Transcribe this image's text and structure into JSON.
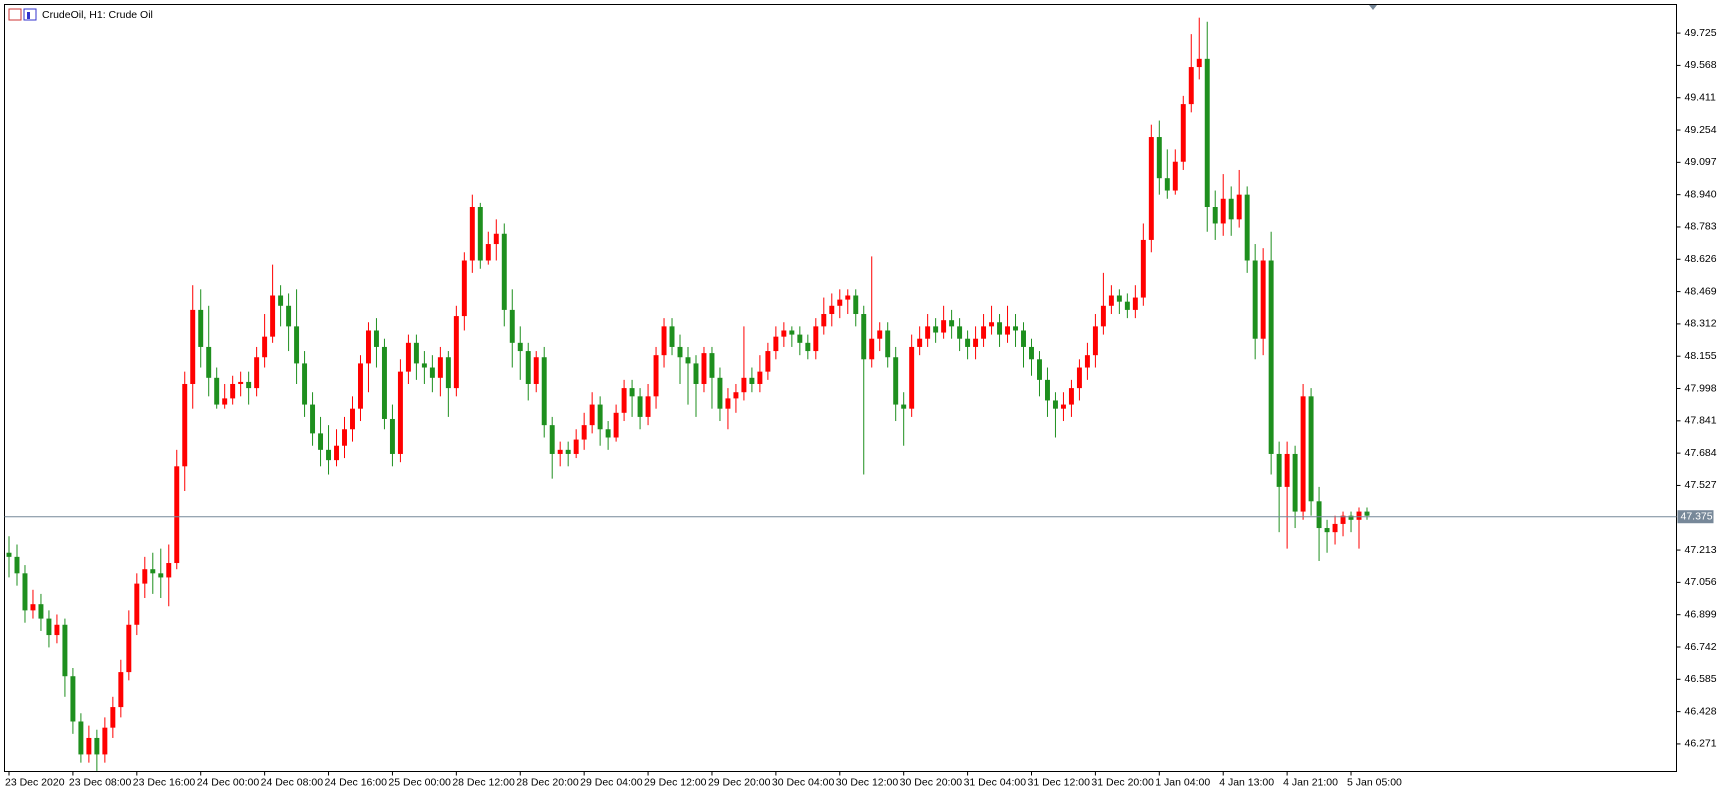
{
  "chart_data": {
    "type": "candlestick",
    "title": "CrudeOil, H1:  Crude Oil",
    "categories": [
      "23 Dec 2020",
      null,
      null,
      null,
      null,
      null,
      null,
      null,
      "23 Dec 08:00",
      null,
      null,
      null,
      null,
      null,
      null,
      null,
      "23 Dec 16:00",
      null,
      null,
      null,
      null,
      null,
      null,
      null,
      "24 Dec 00:00",
      null,
      null,
      null,
      null,
      null,
      null,
      null,
      "24 Dec 08:00",
      null,
      null,
      null,
      null,
      null,
      null,
      null,
      "24 Dec 16:00",
      null,
      null,
      null,
      null,
      null,
      null,
      null,
      "25 Dec 00:00",
      null,
      null,
      null,
      null,
      null,
      null,
      null,
      "28 Dec 12:00",
      null,
      null,
      null,
      null,
      null,
      null,
      null,
      "28 Dec 20:00",
      null,
      null,
      null,
      null,
      null,
      null,
      null,
      "29 Dec 04:00",
      null,
      null,
      null,
      null,
      null,
      null,
      null,
      "29 Dec 12:00",
      null,
      null,
      null,
      null,
      null,
      null,
      null,
      "29 Dec 20:00",
      null,
      null,
      null,
      null,
      null,
      null,
      null,
      "30 Dec 04:00",
      null,
      null,
      null,
      null,
      null,
      null,
      null,
      "30 Dec 12:00",
      null,
      null,
      null,
      null,
      null,
      null,
      null,
      "30 Dec 20:00",
      null,
      null,
      null,
      null,
      null,
      null,
      null,
      "31 Dec 04:00",
      null,
      null,
      null,
      null,
      null,
      null,
      null,
      "31 Dec 12:00",
      null,
      null,
      null,
      null,
      null,
      null,
      null,
      "31 Dec 20:00",
      null,
      null,
      null,
      null,
      null,
      null,
      null,
      "1 Jan 04:00",
      null,
      null,
      null,
      null,
      null,
      null,
      null,
      "4 Jan 13:00",
      null,
      null,
      null,
      null,
      null,
      null,
      null,
      "4 Jan 21:00",
      null,
      null,
      null,
      null,
      null,
      null,
      null,
      "5 Jan 05:00",
      null,
      null
    ],
    "ohlc": [
      [
        47.2,
        47.28,
        47.08,
        47.18
      ],
      [
        47.18,
        47.24,
        47.04,
        47.1
      ],
      [
        47.1,
        47.14,
        46.86,
        46.92
      ],
      [
        46.92,
        47.02,
        46.88,
        46.95
      ],
      [
        46.95,
        47.0,
        46.82,
        46.88
      ],
      [
        46.88,
        46.92,
        46.74,
        46.8
      ],
      [
        46.8,
        46.9,
        46.76,
        46.85
      ],
      [
        46.85,
        46.88,
        46.5,
        46.6
      ],
      [
        46.6,
        46.64,
        46.32,
        46.38
      ],
      [
        46.38,
        46.42,
        46.18,
        46.22
      ],
      [
        46.22,
        46.36,
        46.18,
        46.3
      ],
      [
        46.3,
        46.34,
        46.14,
        46.22
      ],
      [
        46.22,
        46.4,
        46.18,
        46.35
      ],
      [
        46.35,
        46.5,
        46.3,
        46.45
      ],
      [
        46.45,
        46.68,
        46.4,
        46.62
      ],
      [
        46.62,
        46.92,
        46.58,
        46.85
      ],
      [
        46.85,
        47.1,
        46.8,
        47.05
      ],
      [
        47.05,
        47.18,
        46.98,
        47.12
      ],
      [
        47.12,
        47.2,
        47.0,
        47.1
      ],
      [
        47.1,
        47.22,
        46.98,
        47.08
      ],
      [
        47.08,
        47.24,
        46.94,
        47.15
      ],
      [
        47.15,
        47.7,
        47.12,
        47.62
      ],
      [
        47.62,
        48.08,
        47.5,
        48.02
      ],
      [
        48.02,
        48.5,
        47.9,
        48.38
      ],
      [
        48.38,
        48.48,
        48.1,
        48.2
      ],
      [
        48.2,
        48.4,
        47.96,
        48.05
      ],
      [
        48.05,
        48.1,
        47.9,
        47.92
      ],
      [
        47.92,
        48.02,
        47.9,
        47.95
      ],
      [
        47.95,
        48.06,
        47.92,
        48.02
      ],
      [
        48.02,
        48.08,
        47.96,
        48.03
      ],
      [
        48.03,
        48.08,
        47.92,
        48.0
      ],
      [
        48.0,
        48.2,
        47.96,
        48.15
      ],
      [
        48.15,
        48.36,
        48.1,
        48.25
      ],
      [
        48.25,
        48.6,
        48.22,
        48.45
      ],
      [
        48.45,
        48.5,
        48.3,
        48.4
      ],
      [
        48.4,
        48.46,
        48.18,
        48.3
      ],
      [
        48.3,
        48.48,
        48.02,
        48.12
      ],
      [
        48.12,
        48.18,
        47.86,
        47.92
      ],
      [
        47.92,
        47.98,
        47.72,
        47.78
      ],
      [
        47.78,
        47.86,
        47.62,
        47.7
      ],
      [
        47.7,
        47.82,
        47.58,
        47.65
      ],
      [
        47.65,
        47.8,
        47.62,
        47.72
      ],
      [
        47.72,
        47.86,
        47.66,
        47.8
      ],
      [
        47.8,
        47.96,
        47.74,
        47.9
      ],
      [
        47.9,
        48.16,
        47.84,
        48.12
      ],
      [
        48.12,
        48.32,
        47.98,
        48.28
      ],
      [
        48.28,
        48.34,
        48.1,
        48.2
      ],
      [
        48.2,
        48.24,
        47.8,
        47.85
      ],
      [
        47.85,
        47.92,
        47.62,
        47.68
      ],
      [
        47.68,
        48.14,
        47.64,
        48.08
      ],
      [
        48.08,
        48.26,
        48.02,
        48.22
      ],
      [
        48.22,
        48.26,
        48.04,
        48.12
      ],
      [
        48.12,
        48.18,
        48.02,
        48.1
      ],
      [
        48.1,
        48.16,
        47.98,
        48.05
      ],
      [
        48.05,
        48.2,
        47.96,
        48.15
      ],
      [
        48.15,
        48.18,
        47.86,
        48.0
      ],
      [
        48.0,
        48.4,
        47.96,
        48.35
      ],
      [
        48.35,
        48.66,
        48.28,
        48.62
      ],
      [
        48.62,
        48.94,
        48.56,
        48.88
      ],
      [
        48.88,
        48.9,
        48.58,
        48.62
      ],
      [
        48.62,
        48.76,
        48.6,
        48.7
      ],
      [
        48.7,
        48.82,
        48.62,
        48.75
      ],
      [
        48.75,
        48.8,
        48.3,
        48.38
      ],
      [
        48.38,
        48.48,
        48.1,
        48.22
      ],
      [
        48.22,
        48.3,
        48.04,
        48.18
      ],
      [
        48.18,
        48.22,
        47.94,
        48.02
      ],
      [
        48.02,
        48.18,
        47.98,
        48.15
      ],
      [
        48.15,
        48.2,
        47.76,
        47.82
      ],
      [
        47.82,
        47.86,
        47.56,
        47.68
      ],
      [
        47.68,
        47.74,
        47.62,
        47.7
      ],
      [
        47.7,
        47.74,
        47.62,
        47.68
      ],
      [
        47.68,
        47.8,
        47.66,
        47.75
      ],
      [
        47.75,
        47.88,
        47.7,
        47.82
      ],
      [
        47.82,
        47.98,
        47.78,
        47.92
      ],
      [
        47.92,
        47.96,
        47.72,
        47.8
      ],
      [
        47.8,
        47.84,
        47.7,
        47.76
      ],
      [
        47.76,
        47.92,
        47.74,
        47.88
      ],
      [
        47.88,
        48.04,
        47.84,
        48.0
      ],
      [
        48.0,
        48.04,
        47.86,
        47.96
      ],
      [
        47.96,
        48.0,
        47.8,
        47.86
      ],
      [
        47.86,
        48.02,
        47.82,
        47.96
      ],
      [
        47.96,
        48.2,
        47.9,
        48.16
      ],
      [
        48.16,
        48.34,
        48.1,
        48.3
      ],
      [
        48.3,
        48.34,
        48.16,
        48.2
      ],
      [
        48.2,
        48.26,
        48.02,
        48.15
      ],
      [
        48.15,
        48.2,
        47.92,
        48.12
      ],
      [
        48.12,
        48.16,
        47.86,
        48.02
      ],
      [
        48.02,
        48.2,
        47.98,
        48.17
      ],
      [
        48.17,
        48.2,
        47.9,
        48.05
      ],
      [
        48.05,
        48.1,
        47.84,
        47.9
      ],
      [
        47.9,
        48.0,
        47.8,
        47.95
      ],
      [
        47.95,
        48.02,
        47.88,
        47.98
      ],
      [
        47.98,
        48.3,
        47.94,
        48.05
      ],
      [
        48.05,
        48.1,
        47.98,
        48.02
      ],
      [
        48.02,
        48.16,
        47.98,
        48.08
      ],
      [
        48.08,
        48.22,
        48.04,
        48.18
      ],
      [
        48.18,
        48.3,
        48.14,
        48.25
      ],
      [
        48.25,
        48.32,
        48.2,
        48.28
      ],
      [
        48.28,
        48.3,
        48.2,
        48.26
      ],
      [
        48.26,
        48.3,
        48.16,
        48.22
      ],
      [
        48.22,
        48.26,
        48.14,
        48.18
      ],
      [
        48.18,
        48.34,
        48.14,
        48.3
      ],
      [
        48.3,
        48.44,
        48.26,
        48.36
      ],
      [
        48.36,
        48.46,
        48.3,
        48.4
      ],
      [
        48.4,
        48.48,
        48.34,
        48.43
      ],
      [
        48.43,
        48.48,
        48.36,
        48.45
      ],
      [
        48.45,
        48.48,
        48.3,
        48.36
      ],
      [
        48.36,
        48.4,
        47.58,
        48.14
      ],
      [
        48.14,
        48.64,
        48.1,
        48.24
      ],
      [
        48.24,
        48.32,
        48.18,
        48.28
      ],
      [
        48.28,
        48.32,
        48.1,
        48.15
      ],
      [
        48.15,
        48.2,
        47.84,
        47.92
      ],
      [
        47.92,
        47.98,
        47.72,
        47.9
      ],
      [
        47.9,
        48.26,
        47.86,
        48.2
      ],
      [
        48.2,
        48.3,
        48.16,
        48.24
      ],
      [
        48.24,
        48.36,
        48.2,
        48.3
      ],
      [
        48.3,
        48.34,
        48.22,
        48.27
      ],
      [
        48.27,
        48.4,
        48.24,
        48.33
      ],
      [
        48.33,
        48.38,
        48.24,
        48.3
      ],
      [
        48.3,
        48.34,
        48.18,
        48.24
      ],
      [
        48.24,
        48.28,
        48.14,
        48.2
      ],
      [
        48.2,
        48.3,
        48.14,
        48.24
      ],
      [
        48.24,
        48.36,
        48.2,
        48.3
      ],
      [
        48.3,
        48.4,
        48.26,
        48.32
      ],
      [
        48.32,
        48.36,
        48.2,
        48.26
      ],
      [
        48.26,
        48.4,
        48.22,
        48.3
      ],
      [
        48.3,
        48.36,
        48.2,
        48.28
      ],
      [
        48.28,
        48.32,
        48.1,
        48.2
      ],
      [
        48.2,
        48.24,
        48.06,
        48.14
      ],
      [
        48.14,
        48.18,
        47.96,
        48.04
      ],
      [
        48.04,
        48.1,
        47.86,
        47.94
      ],
      [
        47.94,
        47.98,
        47.76,
        47.9
      ],
      [
        47.9,
        47.98,
        47.84,
        47.92
      ],
      [
        47.92,
        48.04,
        47.86,
        48.0
      ],
      [
        48.0,
        48.14,
        47.94,
        48.1
      ],
      [
        48.1,
        48.22,
        48.04,
        48.16
      ],
      [
        48.16,
        48.36,
        48.1,
        48.3
      ],
      [
        48.3,
        48.56,
        48.26,
        48.4
      ],
      [
        48.4,
        48.5,
        48.36,
        48.45
      ],
      [
        48.45,
        48.48,
        48.36,
        48.42
      ],
      [
        48.42,
        48.46,
        48.34,
        48.38
      ],
      [
        48.38,
        48.5,
        48.34,
        48.44
      ],
      [
        48.44,
        48.8,
        48.4,
        48.72
      ],
      [
        48.72,
        49.28,
        48.66,
        49.22
      ],
      [
        49.22,
        49.3,
        48.94,
        49.02
      ],
      [
        49.02,
        49.16,
        48.92,
        48.96
      ],
      [
        48.96,
        49.16,
        48.94,
        49.1
      ],
      [
        49.1,
        49.42,
        49.06,
        49.38
      ],
      [
        49.38,
        49.72,
        49.34,
        49.56
      ],
      [
        49.56,
        49.8,
        49.5,
        49.6
      ],
      [
        49.6,
        49.78,
        48.76,
        48.88
      ],
      [
        48.88,
        48.96,
        48.72,
        48.8
      ],
      [
        48.8,
        49.04,
        48.74,
        48.92
      ],
      [
        48.92,
        48.98,
        48.74,
        48.82
      ],
      [
        48.82,
        49.06,
        48.78,
        48.94
      ],
      [
        48.94,
        48.98,
        48.56,
        48.62
      ],
      [
        48.62,
        48.7,
        48.14,
        48.24
      ],
      [
        48.24,
        48.68,
        48.16,
        48.62
      ],
      [
        48.62,
        48.76,
        47.58,
        47.68
      ],
      [
        47.68,
        47.74,
        47.3,
        47.52
      ],
      [
        47.52,
        47.74,
        47.22,
        47.68
      ],
      [
        47.68,
        47.72,
        47.32,
        47.4
      ],
      [
        47.4,
        48.02,
        47.36,
        47.96
      ],
      [
        47.96,
        48.0,
        47.38,
        47.45
      ],
      [
        47.45,
        47.52,
        47.16,
        47.32
      ],
      [
        47.32,
        47.36,
        47.2,
        47.3
      ],
      [
        47.3,
        47.38,
        47.24,
        47.34
      ],
      [
        47.34,
        47.4,
        47.28,
        47.38
      ],
      [
        47.38,
        47.4,
        47.3,
        47.36
      ],
      [
        47.36,
        47.42,
        47.22,
        47.4
      ],
      [
        47.4,
        47.42,
        47.36,
        47.38
      ]
    ],
    "up_color": "#ff0000",
    "down_color": "#1e8f1e",
    "last_price": 47.375,
    "last_price_color": "#778899",
    "ylim": [
      46.137,
      49.864
    ],
    "yticks": [
      49.725,
      49.568,
      49.411,
      49.254,
      49.097,
      {
        "value": 48.94,
        "label": "48.940"
      },
      48.783,
      48.626,
      48.469,
      48.312,
      48.155,
      47.998,
      47.841,
      47.684,
      47.527,
      47.213,
      47.056,
      46.899,
      46.742,
      46.585,
      46.428,
      46.271
    ]
  }
}
